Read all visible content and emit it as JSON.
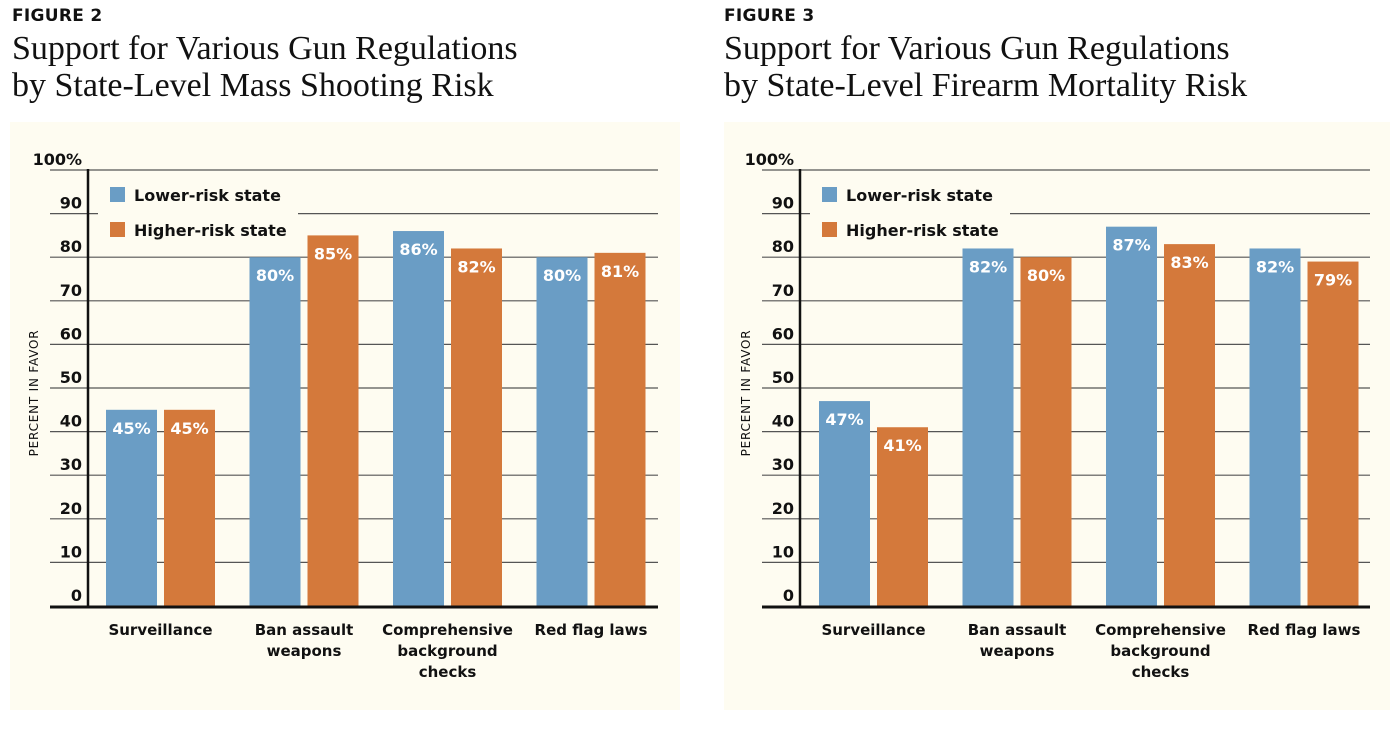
{
  "colors": {
    "lower": "#6a9dc5",
    "higher": "#d4793b",
    "panel_bg": "#fefcf1",
    "axis": "#111111",
    "grid": "#555555"
  },
  "chart_data": [
    {
      "type": "bar",
      "figure_label": "FIGURE 2",
      "title_lines": [
        "Support for Various Gun Regulations",
        "by State-Level Mass Shooting Risk"
      ],
      "ylabel": "PERCENT IN FAVOR",
      "ylim": [
        0,
        100
      ],
      "yticks": [
        "0",
        "10",
        "20",
        "30",
        "40",
        "50",
        "60",
        "70",
        "80",
        "90",
        "100%"
      ],
      "grid": true,
      "legend_placement": "top-left",
      "categories": [
        [
          "Surveillance"
        ],
        [
          "Ban assault",
          "weapons"
        ],
        [
          "Comprehensive",
          "background",
          "checks"
        ],
        [
          "Red flag laws"
        ]
      ],
      "series": [
        {
          "name": "Lower-risk state",
          "values": [
            45,
            80,
            86,
            80
          ],
          "labels": [
            "45%",
            "80%",
            "86%",
            "80%"
          ]
        },
        {
          "name": "Higher-risk state",
          "values": [
            45,
            85,
            82,
            81
          ],
          "labels": [
            "45%",
            "85%",
            "82%",
            "81%"
          ]
        }
      ]
    },
    {
      "type": "bar",
      "figure_label": "FIGURE 3",
      "title_lines": [
        "Support for Various Gun Regulations",
        "by State-Level Firearm Mortality Risk"
      ],
      "ylabel": "PERCENT IN FAVOR",
      "ylim": [
        0,
        100
      ],
      "yticks": [
        "0",
        "10",
        "20",
        "30",
        "40",
        "50",
        "60",
        "70",
        "80",
        "90",
        "100%"
      ],
      "grid": true,
      "legend_placement": "top-left",
      "categories": [
        [
          "Surveillance"
        ],
        [
          "Ban assault",
          "weapons"
        ],
        [
          "Comprehensive",
          "background",
          "checks"
        ],
        [
          "Red flag laws"
        ]
      ],
      "series": [
        {
          "name": "Lower-risk state",
          "values": [
            47,
            82,
            87,
            82
          ],
          "labels": [
            "47%",
            "82%",
            "87%",
            "82%"
          ]
        },
        {
          "name": "Higher-risk state",
          "values": [
            41,
            80,
            83,
            79
          ],
          "labels": [
            "41%",
            "80%",
            "83%",
            "79%"
          ]
        }
      ]
    }
  ]
}
